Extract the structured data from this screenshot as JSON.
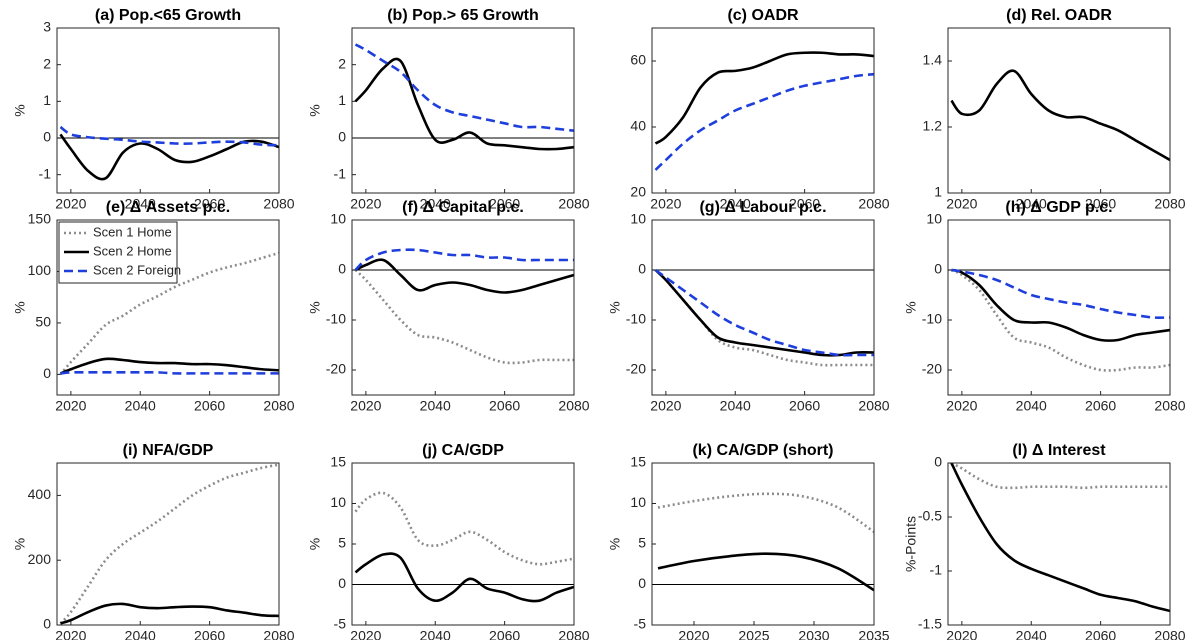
{
  "chart_data": [
    {
      "type": "line",
      "title": "(a) Pop.<65 Growth",
      "ylabel": "%",
      "x": [
        2017,
        2020,
        2025,
        2030,
        2035,
        2040,
        2045,
        2050,
        2055,
        2060,
        2065,
        2070,
        2075,
        2080
      ],
      "xlim": [
        2016,
        2080
      ],
      "xticks": [
        2020,
        2040,
        2060,
        2080
      ],
      "ylim": [
        -1.5,
        3
      ],
      "yticks": [
        -1,
        0,
        1,
        2,
        3
      ],
      "zero_line": true,
      "series": [
        {
          "color": "#000000",
          "style": "solid",
          "values": [
            0.1,
            -0.3,
            -0.9,
            -1.1,
            -0.4,
            -0.15,
            -0.3,
            -0.6,
            -0.65,
            -0.5,
            -0.3,
            -0.1,
            -0.1,
            -0.25
          ]
        },
        {
          "color": "#1f3fdc",
          "style": "dashed",
          "values": [
            0.3,
            0.1,
            0.02,
            -0.02,
            -0.05,
            -0.1,
            -0.12,
            -0.15,
            -0.15,
            -0.12,
            -0.1,
            -0.12,
            -0.18,
            -0.2
          ]
        }
      ]
    },
    {
      "type": "line",
      "title": "(b) Pop.> 65 Growth",
      "ylabel": "%",
      "x": [
        2017,
        2020,
        2025,
        2030,
        2035,
        2040,
        2045,
        2050,
        2055,
        2060,
        2065,
        2070,
        2075,
        2080
      ],
      "xlim": [
        2016,
        2080
      ],
      "xticks": [
        2020,
        2040,
        2060,
        2080
      ],
      "ylim": [
        -1.5,
        3
      ],
      "yticks": [
        -1,
        0,
        1,
        2
      ],
      "zero_line": true,
      "series": [
        {
          "color": "#000000",
          "style": "solid",
          "values": [
            1.0,
            1.3,
            1.9,
            2.1,
            0.9,
            -0.05,
            -0.05,
            0.15,
            -0.15,
            -0.2,
            -0.25,
            -0.3,
            -0.3,
            -0.25
          ]
        },
        {
          "color": "#1f3fdc",
          "style": "dashed",
          "values": [
            2.55,
            2.4,
            2.1,
            1.8,
            1.3,
            0.9,
            0.7,
            0.6,
            0.5,
            0.4,
            0.3,
            0.3,
            0.25,
            0.2
          ]
        }
      ]
    },
    {
      "type": "line",
      "title": "(c) OADR",
      "x": [
        2017,
        2020,
        2025,
        2030,
        2035,
        2040,
        2045,
        2050,
        2055,
        2060,
        2065,
        2070,
        2075,
        2080
      ],
      "xlim": [
        2016,
        2080
      ],
      "xticks": [
        2020,
        2040,
        2060,
        2080
      ],
      "ylim": [
        20,
        70
      ],
      "yticks": [
        20,
        40,
        60
      ],
      "zero_line": false,
      "series": [
        {
          "color": "#000000",
          "style": "solid",
          "values": [
            35,
            37,
            43,
            52,
            56.5,
            57,
            58,
            60,
            62,
            62.5,
            62.5,
            62,
            62,
            61.5
          ]
        },
        {
          "color": "#1f3fdc",
          "style": "dashed",
          "values": [
            27,
            30,
            35,
            39,
            42,
            45,
            47,
            49,
            51,
            52.5,
            53.5,
            54.5,
            55.5,
            56
          ]
        }
      ]
    },
    {
      "type": "line",
      "title": "(d) Rel. OADR",
      "x": [
        2017,
        2020,
        2025,
        2030,
        2035,
        2040,
        2045,
        2050,
        2055,
        2060,
        2065,
        2070,
        2075,
        2080
      ],
      "xlim": [
        2016,
        2080
      ],
      "xticks": [
        2020,
        2040,
        2060,
        2080
      ],
      "ylim": [
        1,
        1.5
      ],
      "yticks": [
        1,
        1.2,
        1.4
      ],
      "zero_line": false,
      "series": [
        {
          "color": "#000000",
          "style": "solid",
          "values": [
            1.28,
            1.24,
            1.25,
            1.33,
            1.37,
            1.3,
            1.25,
            1.23,
            1.23,
            1.21,
            1.19,
            1.16,
            1.13,
            1.1
          ]
        }
      ]
    },
    {
      "type": "line",
      "title": "(e) Δ Assets p.c.",
      "ylabel": "%",
      "x": [
        2017,
        2020,
        2025,
        2030,
        2035,
        2040,
        2045,
        2050,
        2055,
        2060,
        2065,
        2070,
        2075,
        2080
      ],
      "xlim": [
        2016,
        2080
      ],
      "xticks": [
        2020,
        2040,
        2060,
        2080
      ],
      "ylim": [
        -20,
        150
      ],
      "yticks": [
        0,
        50,
        100,
        150
      ],
      "zero_line": false,
      "legend": "northwest",
      "series": [
        {
          "name": "Scen 1 Home",
          "color": "#8c8c8c",
          "style": "dotted",
          "values": [
            0,
            12,
            30,
            48,
            57,
            68,
            76,
            85,
            92,
            99,
            104,
            108,
            113,
            118
          ]
        },
        {
          "name": "Scen 2 Home",
          "color": "#000000",
          "style": "solid",
          "values": [
            1,
            5,
            11,
            15,
            14,
            12,
            11,
            11,
            10,
            10,
            9,
            7,
            5,
            4
          ]
        },
        {
          "name": "Scen 2 Foreign",
          "color": "#1f3fdc",
          "style": "dashed",
          "values": [
            1,
            2,
            2,
            2,
            2,
            2,
            2,
            1,
            1,
            1,
            1,
            1,
            1,
            1
          ]
        }
      ]
    },
    {
      "type": "line",
      "title": "(f) Δ Capital p.c.",
      "ylabel": "%",
      "x": [
        2017,
        2020,
        2025,
        2030,
        2035,
        2040,
        2045,
        2050,
        2055,
        2060,
        2065,
        2070,
        2075,
        2080
      ],
      "xlim": [
        2016,
        2080
      ],
      "xticks": [
        2020,
        2040,
        2060,
        2080
      ],
      "ylim": [
        -25,
        10
      ],
      "yticks": [
        -20,
        -10,
        0,
        10
      ],
      "zero_line": true,
      "series": [
        {
          "color": "#8c8c8c",
          "style": "dotted",
          "values": [
            0,
            -2,
            -6,
            -10,
            -13,
            -13.5,
            -14.5,
            -16,
            -17.5,
            -18.5,
            -18.5,
            -18,
            -18,
            -18
          ]
        },
        {
          "color": "#000000",
          "style": "solid",
          "values": [
            0,
            1,
            2,
            -1,
            -4,
            -3,
            -2.5,
            -3,
            -4,
            -4.5,
            -4,
            -3,
            -2,
            -1
          ]
        },
        {
          "color": "#1f3fdc",
          "style": "dashed",
          "values": [
            0,
            2,
            3.5,
            4,
            4,
            3.5,
            3,
            3,
            2.5,
            2.5,
            2,
            2,
            2,
            2
          ]
        }
      ]
    },
    {
      "type": "line",
      "title": "(g) Δ Labour p.c.",
      "ylabel": "%",
      "x": [
        2017,
        2020,
        2025,
        2030,
        2035,
        2040,
        2045,
        2050,
        2055,
        2060,
        2065,
        2070,
        2075,
        2080
      ],
      "xlim": [
        2016,
        2080
      ],
      "xticks": [
        2020,
        2040,
        2060,
        2080
      ],
      "ylim": [
        -25,
        10
      ],
      "yticks": [
        -20,
        -10,
        0,
        10
      ],
      "zero_line": true,
      "series": [
        {
          "color": "#8c8c8c",
          "style": "dotted",
          "values": [
            0,
            -2,
            -6,
            -10,
            -14,
            -15.5,
            -16,
            -17,
            -18,
            -18.5,
            -19,
            -19,
            -19,
            -19
          ]
        },
        {
          "color": "#000000",
          "style": "solid",
          "values": [
            0,
            -2,
            -6,
            -10,
            -13.5,
            -14.5,
            -15,
            -15.5,
            -16,
            -16.5,
            -17,
            -17,
            -16.5,
            -16.5
          ]
        },
        {
          "color": "#1f3fdc",
          "style": "dashed",
          "values": [
            0,
            -1.5,
            -4,
            -6.5,
            -9,
            -11,
            -12.5,
            -14,
            -15,
            -16,
            -16.5,
            -17,
            -17,
            -17
          ]
        }
      ]
    },
    {
      "type": "line",
      "title": "(h) Δ GDP p.c.",
      "ylabel": "%",
      "x": [
        2017,
        2020,
        2025,
        2030,
        2035,
        2040,
        2045,
        2050,
        2055,
        2060,
        2065,
        2070,
        2075,
        2080
      ],
      "xlim": [
        2016,
        2080
      ],
      "xticks": [
        2020,
        2040,
        2060,
        2080
      ],
      "ylim": [
        -25,
        10
      ],
      "yticks": [
        -20,
        -10,
        0,
        10
      ],
      "zero_line": true,
      "series": [
        {
          "color": "#8c8c8c",
          "style": "dotted",
          "values": [
            0,
            -1,
            -4,
            -9,
            -13.5,
            -14.5,
            -15.5,
            -17.5,
            -19,
            -20,
            -20,
            -19.5,
            -19.5,
            -19
          ]
        },
        {
          "color": "#000000",
          "style": "solid",
          "values": [
            0,
            -0.5,
            -3,
            -7,
            -10,
            -10.5,
            -10.5,
            -11.5,
            -13,
            -14,
            -14,
            -13,
            -12.5,
            -12
          ]
        },
        {
          "color": "#1f3fdc",
          "style": "dashed",
          "values": [
            0,
            -0.3,
            -1,
            -2,
            -3.5,
            -5,
            -5.8,
            -6.5,
            -7,
            -7.8,
            -8.5,
            -9,
            -9.5,
            -9.5
          ]
        }
      ]
    },
    {
      "type": "line",
      "title": "(i) NFA/GDP",
      "ylabel": "%",
      "x": [
        2017,
        2020,
        2025,
        2030,
        2035,
        2040,
        2045,
        2050,
        2055,
        2060,
        2065,
        2070,
        2075,
        2080
      ],
      "xlim": [
        2016,
        2080
      ],
      "xticks": [
        2020,
        2040,
        2060,
        2080
      ],
      "ylim": [
        0,
        500
      ],
      "yticks": [
        0,
        200,
        400
      ],
      "zero_line": false,
      "series": [
        {
          "color": "#8c8c8c",
          "style": "dotted",
          "values": [
            5,
            40,
            120,
            200,
            250,
            285,
            320,
            360,
            400,
            430,
            455,
            470,
            485,
            495
          ]
        },
        {
          "color": "#000000",
          "style": "solid",
          "values": [
            5,
            15,
            40,
            60,
            65,
            55,
            52,
            55,
            57,
            55,
            45,
            38,
            30,
            28
          ]
        }
      ]
    },
    {
      "type": "line",
      "title": "(j) CA/GDP",
      "ylabel": "%",
      "x": [
        2017,
        2020,
        2025,
        2030,
        2035,
        2040,
        2045,
        2050,
        2055,
        2060,
        2065,
        2070,
        2075,
        2080
      ],
      "xlim": [
        2016,
        2080
      ],
      "xticks": [
        2020,
        2040,
        2060,
        2080
      ],
      "ylim": [
        -5,
        15
      ],
      "yticks": [
        -5,
        0,
        5,
        10,
        15
      ],
      "zero_line": true,
      "series": [
        {
          "color": "#8c8c8c",
          "style": "dotted",
          "values": [
            9,
            10.5,
            11.3,
            9.5,
            5.5,
            4.8,
            5.5,
            6.5,
            5.5,
            4,
            3,
            2.5,
            2.8,
            3.2
          ]
        },
        {
          "color": "#000000",
          "style": "solid",
          "values": [
            1.5,
            2.5,
            3.7,
            3.3,
            -0.5,
            -2,
            -1,
            0.7,
            -0.5,
            -1,
            -1.8,
            -2,
            -1,
            -0.3
          ]
        }
      ]
    },
    {
      "type": "line",
      "title": "(k) CA/GDP (short)",
      "ylabel": "%",
      "x": [
        2017,
        2020,
        2023,
        2026,
        2029,
        2032,
        2035
      ],
      "xlim": [
        2016.5,
        2035
      ],
      "xticks": [
        2020,
        2025,
        2030,
        2035
      ],
      "ylim": [
        -5,
        15
      ],
      "yticks": [
        -5,
        0,
        5,
        10,
        15
      ],
      "zero_line": true,
      "series": [
        {
          "color": "#8c8c8c",
          "style": "dotted",
          "values": [
            9.5,
            10.3,
            10.9,
            11.2,
            10.9,
            9.5,
            6.5
          ]
        },
        {
          "color": "#000000",
          "style": "solid",
          "values": [
            2,
            2.9,
            3.5,
            3.8,
            3.4,
            2,
            -0.7
          ]
        }
      ]
    },
    {
      "type": "line",
      "title": "(l) Δ Interest",
      "ylabel": "%-Points",
      "x": [
        2017,
        2020,
        2025,
        2030,
        2035,
        2040,
        2045,
        2050,
        2055,
        2060,
        2065,
        2070,
        2075,
        2080
      ],
      "xlim": [
        2016,
        2080
      ],
      "xticks": [
        2020,
        2040,
        2060,
        2080
      ],
      "ylim": [
        -1.5,
        0
      ],
      "yticks": [
        -1.5,
        -1,
        -0.5,
        0
      ],
      "zero_line": false,
      "series": [
        {
          "color": "#8c8c8c",
          "style": "dotted",
          "values": [
            0,
            -0.05,
            -0.15,
            -0.22,
            -0.23,
            -0.22,
            -0.22,
            -0.22,
            -0.23,
            -0.22,
            -0.22,
            -0.22,
            -0.22,
            -0.22
          ]
        },
        {
          "color": "#000000",
          "style": "solid",
          "values": [
            0,
            -0.2,
            -0.5,
            -0.75,
            -0.9,
            -0.98,
            -1.04,
            -1.1,
            -1.16,
            -1.22,
            -1.25,
            -1.28,
            -1.33,
            -1.37
          ]
        }
      ]
    }
  ]
}
